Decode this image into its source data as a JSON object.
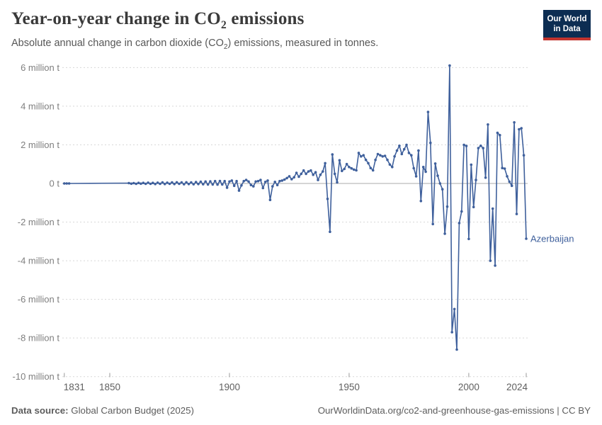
{
  "branding": {
    "logo_line1": "Our World",
    "logo_line2": "in Data",
    "logo_bg_color": "#0c2d52",
    "logo_bar_color": "#c2342e"
  },
  "header": {
    "title_pre": "Year-on-year change in CO",
    "title_sub": "2",
    "title_post": " emissions",
    "subtitle_pre": "Absolute annual change in carbon dioxide (CO",
    "subtitle_sub": "2",
    "subtitle_post": ") emissions, measured in tonnes."
  },
  "footer": {
    "source_label": "Data source:",
    "source_value": " Global Carbon Budget (2025)",
    "attribution": "OurWorldinData.org/co2-and-greenhouse-gas-emissions | CC BY"
  },
  "chart_data": {
    "type": "line",
    "title": "Year-on-year change in CO₂ emissions",
    "subtitle": "Absolute annual change in carbon dioxide (CO₂) emissions, measured in tonnes.",
    "entity": "Azerbaijan",
    "unit": "tonnes",
    "value_scale": "million tonnes",
    "grid": true,
    "legend_position": "end-of-line-label",
    "xlim": [
      1831,
      2024
    ],
    "ylim": [
      -10,
      6
    ],
    "x_ticks": [
      {
        "year": 1831,
        "label": "1831"
      },
      {
        "year": 1850,
        "label": "1850"
      },
      {
        "year": 1900,
        "label": "1900"
      },
      {
        "year": 1950,
        "label": "1950"
      },
      {
        "year": 2000,
        "label": "2000"
      },
      {
        "year": 2024,
        "label": "2024"
      }
    ],
    "y_ticks": [
      {
        "v": 6,
        "label": "6 million t"
      },
      {
        "v": 4,
        "label": "4 million t"
      },
      {
        "v": 2,
        "label": "2 million t"
      },
      {
        "v": 0,
        "label": "0 t"
      },
      {
        "v": -2,
        "label": "-2 million t"
      },
      {
        "v": -4,
        "label": "-4 million t"
      },
      {
        "v": -6,
        "label": "-6 million t"
      },
      {
        "v": -8,
        "label": "-8 million t"
      },
      {
        "v": -10,
        "label": "-10 million t"
      }
    ],
    "colors": {
      "series": "#3f609c",
      "gridline": "#d8d8d8",
      "zero_line": "#ababab",
      "axis_tick": "#9a9a9a",
      "y_label": "#7f7f7f",
      "x_label": "#606060"
    },
    "series": [
      {
        "name": "Azerbaijan",
        "color": "#3f609c",
        "points_year_million_t": [
          [
            1831,
            0
          ],
          [
            1832,
            0
          ],
          [
            1833,
            0
          ],
          [
            1858,
            0.02
          ],
          [
            1859,
            -0.01
          ],
          [
            1860,
            0.02
          ],
          [
            1861,
            -0.02
          ],
          [
            1862,
            0.03
          ],
          [
            1863,
            -0.01
          ],
          [
            1864,
            0.03
          ],
          [
            1865,
            -0.02
          ],
          [
            1866,
            0.04
          ],
          [
            1867,
            -0.02
          ],
          [
            1868,
            0.03
          ],
          [
            1869,
            -0.03
          ],
          [
            1870,
            0.04
          ],
          [
            1871,
            -0.02
          ],
          [
            1872,
            0.05
          ],
          [
            1873,
            -0.03
          ],
          [
            1874,
            0.04
          ],
          [
            1875,
            -0.02
          ],
          [
            1876,
            0.05
          ],
          [
            1877,
            -0.03
          ],
          [
            1878,
            0.06
          ],
          [
            1879,
            -0.02
          ],
          [
            1880,
            0.05
          ],
          [
            1881,
            -0.04
          ],
          [
            1882,
            0.06
          ],
          [
            1883,
            -0.03
          ],
          [
            1884,
            0.05
          ],
          [
            1885,
            -0.04
          ],
          [
            1886,
            0.07
          ],
          [
            1887,
            -0.03
          ],
          [
            1888,
            0.09
          ],
          [
            1889,
            -0.04
          ],
          [
            1890,
            0.1
          ],
          [
            1891,
            -0.05
          ],
          [
            1892,
            0.11
          ],
          [
            1893,
            -0.05
          ],
          [
            1894,
            0.12
          ],
          [
            1895,
            -0.06
          ],
          [
            1896,
            0.13
          ],
          [
            1897,
            -0.05
          ],
          [
            1898,
            0.12
          ],
          [
            1899,
            -0.22
          ],
          [
            1900,
            0.1
          ],
          [
            1901,
            0.15
          ],
          [
            1902,
            -0.12
          ],
          [
            1903,
            0.12
          ],
          [
            1904,
            -0.37
          ],
          [
            1905,
            -0.1
          ],
          [
            1906,
            0.12
          ],
          [
            1907,
            0.18
          ],
          [
            1908,
            0.1
          ],
          [
            1909,
            -0.08
          ],
          [
            1910,
            -0.15
          ],
          [
            1911,
            0.1
          ],
          [
            1912,
            0.12
          ],
          [
            1913,
            0.18
          ],
          [
            1914,
            -0.24
          ],
          [
            1915,
            0.08
          ],
          [
            1916,
            0.15
          ],
          [
            1917,
            -0.85
          ],
          [
            1918,
            -0.15
          ],
          [
            1919,
            0.08
          ],
          [
            1920,
            -0.08
          ],
          [
            1921,
            0.12
          ],
          [
            1922,
            0.15
          ],
          [
            1923,
            0.2
          ],
          [
            1924,
            0.28
          ],
          [
            1925,
            0.37
          ],
          [
            1926,
            0.22
          ],
          [
            1927,
            0.32
          ],
          [
            1928,
            0.55
          ],
          [
            1929,
            0.35
          ],
          [
            1930,
            0.5
          ],
          [
            1931,
            0.67
          ],
          [
            1932,
            0.5
          ],
          [
            1933,
            0.62
          ],
          [
            1934,
            0.67
          ],
          [
            1935,
            0.45
          ],
          [
            1936,
            0.58
          ],
          [
            1937,
            0.18
          ],
          [
            1938,
            0.45
          ],
          [
            1939,
            0.62
          ],
          [
            1940,
            1.05
          ],
          [
            1941,
            -0.8
          ],
          [
            1942,
            -2.5
          ],
          [
            1943,
            1.5
          ],
          [
            1944,
            0.5
          ],
          [
            1945,
            0.06
          ],
          [
            1946,
            1.2
          ],
          [
            1947,
            0.65
          ],
          [
            1948,
            0.75
          ],
          [
            1949,
            1.0
          ],
          [
            1950,
            0.85
          ],
          [
            1951,
            0.78
          ],
          [
            1952,
            0.72
          ],
          [
            1953,
            0.68
          ],
          [
            1954,
            1.58
          ],
          [
            1955,
            1.4
          ],
          [
            1956,
            1.46
          ],
          [
            1957,
            1.22
          ],
          [
            1958,
            1.05
          ],
          [
            1959,
            0.8
          ],
          [
            1960,
            0.68
          ],
          [
            1961,
            1.22
          ],
          [
            1962,
            1.52
          ],
          [
            1963,
            1.46
          ],
          [
            1964,
            1.4
          ],
          [
            1965,
            1.43
          ],
          [
            1966,
            1.22
          ],
          [
            1967,
            0.98
          ],
          [
            1968,
            0.85
          ],
          [
            1969,
            1.4
          ],
          [
            1970,
            1.7
          ],
          [
            1971,
            1.95
          ],
          [
            1972,
            1.52
          ],
          [
            1973,
            1.77
          ],
          [
            1974,
            2.0
          ],
          [
            1975,
            1.58
          ],
          [
            1976,
            1.46
          ],
          [
            1977,
            0.79
          ],
          [
            1978,
            0.37
          ],
          [
            1979,
            1.7
          ],
          [
            1980,
            -0.91
          ],
          [
            1981,
            0.85
          ],
          [
            1982,
            0.61
          ],
          [
            1983,
            3.7
          ],
          [
            1984,
            2.1
          ],
          [
            1985,
            -2.1
          ],
          [
            1986,
            1.03
          ],
          [
            1987,
            0.4
          ],
          [
            1988,
            0.0
          ],
          [
            1989,
            -0.3
          ],
          [
            1990,
            -2.6
          ],
          [
            1991,
            -1.2
          ],
          [
            1992,
            6.1
          ],
          [
            1993,
            -7.7
          ],
          [
            1994,
            -6.5
          ],
          [
            1995,
            -8.6
          ],
          [
            1996,
            -2.05
          ],
          [
            1997,
            -1.45
          ],
          [
            1998,
            2.0
          ],
          [
            1999,
            1.94
          ],
          [
            2000,
            -2.87
          ],
          [
            2001,
            0.97
          ],
          [
            2002,
            -1.22
          ],
          [
            2003,
            0.18
          ],
          [
            2004,
            1.83
          ],
          [
            2005,
            1.95
          ],
          [
            2006,
            1.83
          ],
          [
            2007,
            0.3
          ],
          [
            2008,
            3.05
          ],
          [
            2009,
            -4.0
          ],
          [
            2010,
            -1.3
          ],
          [
            2011,
            -4.25
          ],
          [
            2012,
            2.62
          ],
          [
            2013,
            2.5
          ],
          [
            2014,
            0.8
          ],
          [
            2015,
            0.77
          ],
          [
            2016,
            0.37
          ],
          [
            2017,
            0.09
          ],
          [
            2018,
            -0.12
          ],
          [
            2019,
            3.16
          ],
          [
            2020,
            -1.58
          ],
          [
            2021,
            2.8
          ],
          [
            2022,
            2.86
          ],
          [
            2023,
            1.46
          ],
          [
            2024,
            -2.86
          ]
        ]
      }
    ]
  }
}
